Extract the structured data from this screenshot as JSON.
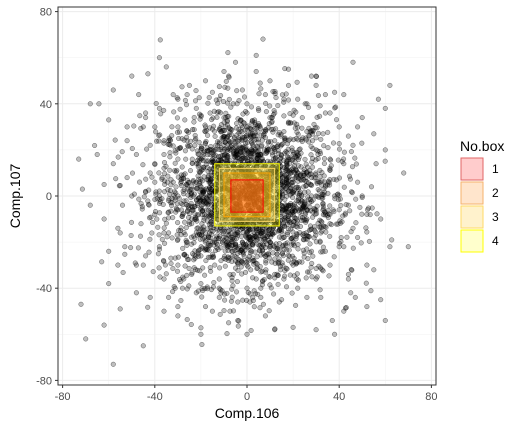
{
  "chart_data": {
    "type": "scatter",
    "xlabel": "Comp.106",
    "ylabel": "Comp.107",
    "xlim": [
      -82,
      82
    ],
    "ylim": [
      -82,
      82
    ],
    "x_ticks": [
      -80,
      -40,
      0,
      40,
      80
    ],
    "y_ticks": [
      -80,
      -40,
      0,
      40,
      80
    ],
    "x_tick_labels": [
      "-80",
      "-40",
      "0",
      "40",
      "80"
    ],
    "y_tick_labels": [
      "-80",
      "-40",
      "0",
      "40",
      "80"
    ],
    "grid": true,
    "legend_position": "right",
    "point_color": "#000000",
    "point_fill_opacity": 0.25,
    "points": [
      [
        -70,
        -62
      ],
      [
        -62,
        -56
      ],
      [
        -58,
        -73
      ],
      [
        -72,
        -47
      ],
      [
        60,
        -54
      ],
      [
        -55,
        -49
      ],
      [
        -40,
        30
      ],
      [
        -65,
        18
      ],
      [
        -73,
        16
      ],
      [
        -68,
        40
      ],
      [
        -60,
        33
      ],
      [
        -58,
        46
      ],
      [
        -50,
        52
      ],
      [
        -35,
        56
      ],
      [
        -43,
        53
      ],
      [
        -48,
        -42
      ],
      [
        -45,
        -30
      ],
      [
        -53,
        -22
      ],
      [
        -56,
        -30
      ],
      [
        -45,
        -65
      ],
      [
        -36,
        -50
      ],
      [
        -20,
        -60
      ],
      [
        -15,
        -50
      ],
      [
        -8,
        -55
      ],
      [
        0,
        -60
      ],
      [
        12,
        -58
      ],
      [
        20,
        -57
      ],
      [
        30,
        -58
      ],
      [
        37,
        -54
      ],
      [
        42,
        -50
      ],
      [
        52,
        -48
      ],
      [
        58,
        -45
      ],
      [
        45,
        -42
      ],
      [
        55,
        -32
      ],
      [
        62,
        -22
      ],
      [
        70,
        -22
      ],
      [
        58,
        -10
      ],
      [
        68,
        10
      ],
      [
        60,
        20
      ],
      [
        55,
        27
      ],
      [
        50,
        34
      ],
      [
        57,
        42
      ],
      [
        62,
        48
      ],
      [
        46,
        58
      ],
      [
        28,
        52
      ],
      [
        38,
        45
      ],
      [
        18,
        55
      ],
      [
        10,
        50
      ],
      [
        4,
        61
      ],
      [
        -5,
        58
      ],
      [
        -10,
        54
      ],
      [
        -18,
        50
      ],
      [
        -25,
        48
      ],
      [
        -30,
        42
      ],
      [
        -38,
        38
      ],
      [
        -45,
        30
      ],
      [
        -52,
        24
      ],
      [
        -58,
        14
      ],
      [
        -62,
        5
      ],
      [
        -68,
        -4
      ],
      [
        -62,
        -10
      ],
      [
        -55,
        -16
      ],
      [
        -60,
        -24
      ],
      [
        -42,
        10
      ],
      [
        -36,
        18
      ],
      [
        -34,
        -2
      ],
      [
        -46,
        -12
      ],
      [
        -38,
        -22
      ],
      [
        -30,
        -30
      ],
      [
        -28,
        -40
      ],
      [
        -20,
        -38
      ],
      [
        -12,
        -44
      ],
      [
        -4,
        -46
      ],
      [
        6,
        -44
      ],
      [
        14,
        -46
      ],
      [
        22,
        -40
      ],
      [
        30,
        -36
      ],
      [
        36,
        -30
      ],
      [
        40,
        -22
      ],
      [
        46,
        -14
      ],
      [
        44,
        -4
      ],
      [
        48,
        6
      ],
      [
        42,
        14
      ],
      [
        46,
        22
      ],
      [
        40,
        30
      ],
      [
        34,
        36
      ],
      [
        26,
        40
      ],
      [
        16,
        42
      ],
      [
        8,
        44
      ],
      [
        -2,
        46
      ],
      [
        -12,
        42
      ],
      [
        -22,
        38
      ],
      [
        -30,
        30
      ],
      [
        -36,
        24
      ],
      [
        -40,
        14
      ],
      [
        -44,
        2
      ],
      [
        -40,
        -8
      ],
      [
        -34,
        -16
      ],
      [
        -26,
        -20
      ],
      [
        -20,
        -26
      ],
      [
        -14,
        -30
      ],
      [
        -6,
        -34
      ],
      [
        4,
        -36
      ],
      [
        12,
        -34
      ],
      [
        20,
        -30
      ],
      [
        28,
        -24
      ],
      [
        32,
        -16
      ],
      [
        36,
        -8
      ],
      [
        34,
        4
      ],
      [
        36,
        12
      ],
      [
        30,
        20
      ],
      [
        26,
        28
      ],
      [
        18,
        32
      ],
      [
        10,
        34
      ],
      [
        0,
        36
      ],
      [
        -10,
        34
      ],
      [
        -18,
        30
      ],
      [
        -26,
        24
      ],
      [
        -30,
        16
      ],
      [
        -32,
        6
      ],
      [
        -30,
        -6
      ],
      [
        -24,
        -12
      ],
      [
        -16,
        -18
      ],
      [
        -8,
        -22
      ],
      [
        2,
        -24
      ],
      [
        12,
        -22
      ],
      [
        20,
        -18
      ],
      [
        26,
        -10
      ],
      [
        28,
        0
      ],
      [
        26,
        10
      ],
      [
        20,
        18
      ],
      [
        12,
        24
      ],
      [
        2,
        26
      ],
      [
        -8,
        24
      ],
      [
        -16,
        20
      ],
      [
        -22,
        14
      ],
      [
        -24,
        4
      ],
      [
        -20,
        -6
      ],
      [
        -12,
        -12
      ],
      [
        -4,
        -16
      ],
      [
        6,
        -16
      ],
      [
        14,
        -12
      ],
      [
        18,
        -4
      ],
      [
        20,
        6
      ],
      [
        14,
        14
      ],
      [
        6,
        18
      ],
      [
        -4,
        18
      ],
      [
        -12,
        14
      ],
      [
        -16,
        6
      ],
      [
        -14,
        -4
      ],
      [
        -6,
        -10
      ],
      [
        4,
        -10
      ],
      [
        10,
        -4
      ],
      [
        12,
        6
      ],
      [
        6,
        12
      ],
      [
        -2,
        12
      ],
      [
        -8,
        6
      ],
      [
        -8,
        -2
      ],
      [
        0,
        -4
      ],
      [
        6,
        2
      ],
      [
        0,
        6
      ],
      [
        -25,
        2
      ],
      [
        25,
        -3
      ],
      [
        -3,
        28
      ],
      [
        3,
        -28
      ],
      [
        -38,
        0
      ],
      [
        38,
        0
      ],
      [
        0,
        40
      ],
      [
        0,
        -40
      ],
      [
        -50,
        0
      ],
      [
        50,
        0
      ],
      [
        -15,
        45
      ],
      [
        15,
        -45
      ],
      [
        -44,
        36
      ],
      [
        44,
        -36
      ],
      [
        -36,
        -36
      ],
      [
        36,
        36
      ],
      [
        -20,
        20
      ],
      [
        20,
        -20
      ],
      [
        -28,
        -8
      ],
      [
        28,
        8
      ],
      [
        -8,
        -28
      ],
      [
        8,
        28
      ],
      [
        -48,
        18
      ],
      [
        48,
        -18
      ],
      [
        -18,
        -48
      ],
      [
        18,
        48
      ],
      [
        -32,
        44
      ],
      [
        32,
        -44
      ],
      [
        -44,
        -26
      ],
      [
        44,
        26
      ],
      [
        -26,
        44
      ],
      [
        26,
        -44
      ],
      [
        -52,
        8
      ],
      [
        52,
        -8
      ],
      [
        -8,
        52
      ],
      [
        8,
        -52
      ],
      [
        -54,
        -4
      ],
      [
        54,
        4
      ],
      [
        -4,
        -54
      ],
      [
        4,
        54
      ],
      [
        -24,
        -34
      ],
      [
        24,
        34
      ],
      [
        -34,
        24
      ],
      [
        34,
        -24
      ],
      [
        -10,
        -8
      ],
      [
        10,
        8
      ],
      [
        -2,
        -20
      ],
      [
        2,
        20
      ],
      [
        -20,
        -2
      ],
      [
        20,
        2
      ],
      [
        -42,
        -44
      ],
      [
        42,
        44
      ],
      [
        -47,
        44
      ],
      [
        47,
        -44
      ],
      [
        -30,
        -48
      ],
      [
        30,
        48
      ],
      [
        -48,
        -30
      ],
      [
        48,
        30
      ],
      [
        -16,
        36
      ],
      [
        16,
        -36
      ],
      [
        -36,
        -16
      ],
      [
        36,
        16
      ],
      [
        -6,
        40
      ],
      [
        6,
        -40
      ],
      [
        -40,
        6
      ],
      [
        40,
        -6
      ],
      [
        -22,
        -42
      ],
      [
        22,
        42
      ],
      [
        -42,
        22
      ],
      [
        42,
        -22
      ],
      [
        -12,
        -36
      ],
      [
        12,
        36
      ],
      [
        -36,
        12
      ],
      [
        36,
        -12
      ],
      [
        -60,
        -38
      ],
      [
        60,
        38
      ],
      [
        -38,
        60
      ],
      [
        38,
        -60
      ],
      [
        -27,
        33
      ],
      [
        27,
        -33
      ],
      [
        -33,
        -27
      ],
      [
        33,
        27
      ],
      [
        -5,
        5
      ],
      [
        5,
        -5
      ],
      [
        -3,
        -3
      ],
      [
        3,
        3
      ],
      [
        -14,
        2
      ],
      [
        14,
        -2
      ],
      [
        -2,
        -14
      ],
      [
        2,
        14
      ],
      [
        -18,
        -16
      ],
      [
        18,
        16
      ],
      [
        -16,
        18
      ],
      [
        16,
        -18
      ],
      [
        -30,
        0
      ],
      [
        30,
        0
      ],
      [
        0,
        -30
      ],
      [
        0,
        30
      ],
      [
        -10,
        22
      ],
      [
        10,
        -22
      ],
      [
        -22,
        -10
      ],
      [
        22,
        10
      ],
      [
        -34,
        -44
      ],
      [
        34,
        44
      ],
      [
        -44,
        34
      ],
      [
        44,
        -34
      ],
      [
        -52,
        30
      ],
      [
        52,
        -30
      ],
      [
        -30,
        -52
      ],
      [
        30,
        52
      ],
      [
        -56,
        -14
      ],
      [
        56,
        14
      ]
    ],
    "boxes": [
      {
        "name": "4",
        "xmin": -14,
        "xmax": 14,
        "ymin": -13,
        "ymax": 14,
        "fill": "#ffff00",
        "stroke": "#ffff00"
      },
      {
        "name": "3",
        "xmin": -12,
        "xmax": 12,
        "ymin": -11,
        "ymax": 12,
        "fill": "#ffd966",
        "stroke": "#ffd966"
      },
      {
        "name": "2",
        "xmin": -10,
        "xmax": 10,
        "ymin": -9,
        "ymax": 10,
        "fill": "#ffa500",
        "stroke": "#ffa500"
      },
      {
        "name": "1",
        "xmin": -7,
        "xmax": 7,
        "ymin": -7,
        "ymax": 7,
        "fill": "#ff0000",
        "stroke": "#ff0000"
      }
    ],
    "legend": {
      "title": "No.box",
      "items": [
        {
          "label": "1",
          "fill": "#ffcccc",
          "stroke": "#e06666"
        },
        {
          "label": "2",
          "fill": "#ffe5cc",
          "stroke": "#f6b26b"
        },
        {
          "label": "3",
          "fill": "#fff2cc",
          "stroke": "#ffd966"
        },
        {
          "label": "4",
          "fill": "#ffffcc",
          "stroke": "#ffff00"
        }
      ]
    }
  }
}
